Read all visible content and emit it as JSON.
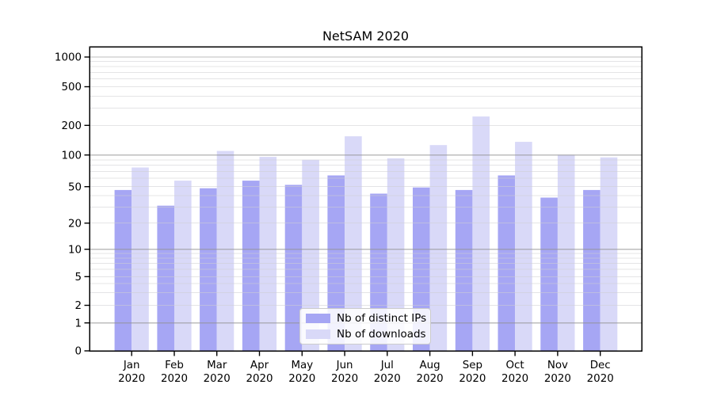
{
  "chart_data": {
    "type": "bar",
    "title": "NetSAM 2020",
    "months": [
      "Jan",
      "Feb",
      "Mar",
      "Apr",
      "May",
      "Jun",
      "Jul",
      "Aug",
      "Sep",
      "Oct",
      "Nov",
      "Dec"
    ],
    "year_label": "2020",
    "yscale": "symlog",
    "ylim": [
      0,
      1000
    ],
    "yticks": [
      0,
      1,
      2,
      5,
      10,
      20,
      50,
      100,
      200,
      500,
      1000
    ],
    "grid": true,
    "legend_position": "lower center",
    "series": [
      {
        "name": "Nb of distinct IPs",
        "color": "#a6a6f4",
        "values": [
          46,
          31,
          48,
          57,
          52,
          64,
          42,
          49,
          46,
          64,
          38,
          46
        ]
      },
      {
        "name": "Nb of downloads",
        "color": "#d9d9f8",
        "values": [
          76,
          57,
          110,
          96,
          90,
          155,
          93,
          126,
          247,
          136,
          100,
          95
        ]
      }
    ]
  }
}
